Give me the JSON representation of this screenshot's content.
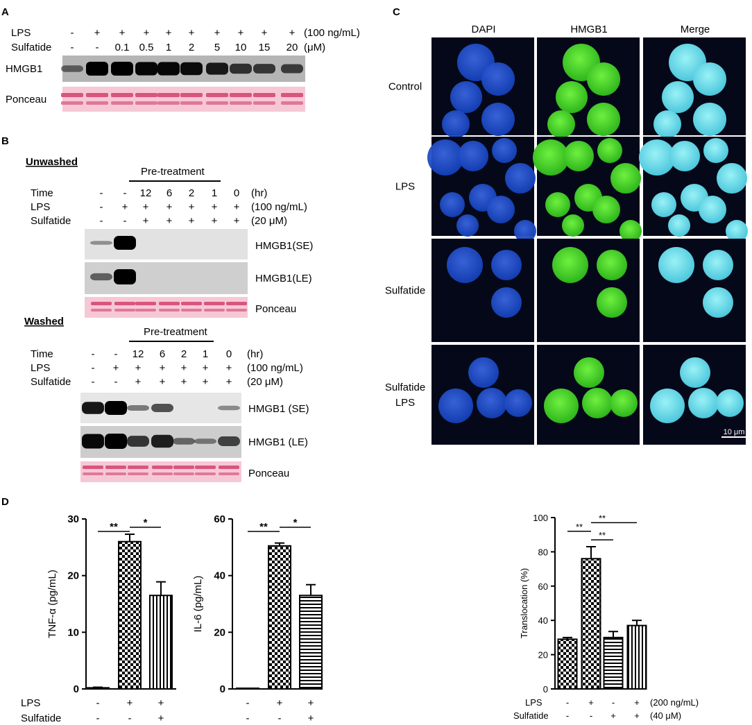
{
  "figure": {
    "panel_labels": {
      "a": "A",
      "b": "B",
      "c": "C",
      "d": "D"
    },
    "panel_a": {
      "row_labels": [
        "LPS",
        "Sulfatide"
      ],
      "lps": [
        "-",
        "+",
        "+",
        "+",
        "+",
        "+",
        "+",
        "+",
        "+",
        "+"
      ],
      "sulfatide": [
        "-",
        "-",
        "0.1",
        "0.5",
        "1",
        "2",
        "5",
        "10",
        "15",
        "20"
      ],
      "lps_unit": "(100 ng/mL)",
      "sulfatide_unit": "(μM)",
      "blot_labels": [
        "HMGB1",
        "Ponceau"
      ],
      "hmgb1_intensity": [
        0.25,
        1.0,
        1.0,
        0.95,
        0.95,
        0.9,
        0.8,
        0.6,
        0.55,
        0.5
      ]
    },
    "panel_b": {
      "unwashed": {
        "title": "Unwashed",
        "pretreatment": "Pre-treatment",
        "row_labels": [
          "Time",
          "LPS",
          "Sulfatide"
        ],
        "time": [
          "-",
          "-",
          "12",
          "6",
          "2",
          "1",
          "0"
        ],
        "lps": [
          "-",
          "+",
          "+",
          "+",
          "+",
          "+",
          "+"
        ],
        "sulfatide": [
          "-",
          "-",
          "+",
          "+",
          "+",
          "+",
          "+"
        ],
        "units": [
          "(hr)",
          "(100 ng/mL)",
          "(20 μM)"
        ],
        "blot_labels": [
          "HMGB1(SE)",
          "HMGB1(LE)",
          "Ponceau"
        ],
        "se_intensity": [
          0.1,
          1.0,
          0,
          0,
          0,
          0,
          0
        ],
        "le_intensity": [
          0.35,
          1.0,
          0,
          0,
          0,
          0,
          0
        ]
      },
      "washed": {
        "title": "Washed",
        "pretreatment": "Pre-treatment",
        "row_labels": [
          "Time",
          "LPS",
          "Sulfatide"
        ],
        "time": [
          "-",
          "-",
          "12",
          "6",
          "2",
          "1",
          "0"
        ],
        "lps": [
          "-",
          "+",
          "+",
          "+",
          "+",
          "+",
          "+"
        ],
        "sulfatide": [
          "-",
          "-",
          "+",
          "+",
          "+",
          "+",
          "+"
        ],
        "units": [
          "(hr)",
          "(100 ng/mL)",
          "(20 μM)"
        ],
        "blot_labels": [
          "HMGB1 (SE)",
          "HMGB1 (LE)",
          "Ponceau"
        ],
        "se_intensity": [
          0.85,
          1.0,
          0.25,
          0.5,
          0,
          0,
          0.15
        ],
        "le_intensity": [
          0.95,
          1.0,
          0.65,
          0.8,
          0.3,
          0.2,
          0.55
        ]
      }
    },
    "panel_c": {
      "columns": [
        "DAPI",
        "HMGB1",
        "Merge"
      ],
      "rows": [
        "Control",
        "LPS",
        "Sulfatide",
        "Sulfatide\nLPS"
      ],
      "row_label_lines": [
        [
          "Control"
        ],
        [
          "LPS"
        ],
        [
          "Sulfatide"
        ],
        [
          "Sulfatide",
          "LPS"
        ]
      ],
      "scale_bar": "10 μm",
      "colors": {
        "dapi": "#1f4fc7",
        "hmgb1": "#48d62a",
        "merge": "#6fe0e8",
        "background": "#050818"
      }
    },
    "panel_d": {
      "row_labels": [
        "LPS",
        "Sulfatide"
      ],
      "translocation_units": [
        "(200 ng/mL)",
        "(40 μM)"
      ]
    }
  },
  "chart_data": [
    {
      "type": "bar",
      "ylabel": "TNF-α (pg/mL)",
      "ylim": [
        0,
        30
      ],
      "yticks": [
        0,
        10,
        20,
        30
      ],
      "categories": [
        "",
        "",
        ""
      ],
      "values": [
        0.2,
        26.0,
        16.5
      ],
      "errors": [
        0.1,
        1.3,
        2.4
      ],
      "patterns": [
        "none",
        "checker",
        "vertical"
      ],
      "lps": [
        "-",
        "+",
        "+"
      ],
      "sulfatide": [
        "-",
        "-",
        "+"
      ],
      "significance": [
        {
          "from": 0,
          "to": 1,
          "label": "**"
        },
        {
          "from": 1,
          "to": 2,
          "label": "*"
        }
      ]
    },
    {
      "type": "bar",
      "ylabel": "IL-6 (pg/mL)",
      "ylim": [
        0,
        60
      ],
      "yticks": [
        0,
        20,
        40,
        60
      ],
      "categories": [
        "",
        "",
        ""
      ],
      "values": [
        0,
        50.5,
        33.0
      ],
      "errors": [
        0,
        1.0,
        3.8
      ],
      "patterns": [
        "none",
        "checker",
        "horizontal"
      ],
      "lps": [
        "-",
        "+",
        "+"
      ],
      "sulfatide": [
        "-",
        "-",
        "+"
      ],
      "significance": [
        {
          "from": 0,
          "to": 1,
          "label": "**"
        },
        {
          "from": 1,
          "to": 2,
          "label": "*"
        }
      ]
    },
    {
      "type": "bar",
      "ylabel": "Translocation (%)",
      "ylim": [
        0,
        100
      ],
      "yticks": [
        0,
        20,
        40,
        60,
        80,
        100
      ],
      "categories": [
        "",
        "",
        "",
        ""
      ],
      "values": [
        29,
        76,
        30,
        37
      ],
      "errors": [
        1,
        7,
        3.5,
        3
      ],
      "patterns": [
        "checker",
        "checker",
        "horizontal",
        "vertical"
      ],
      "lps": [
        "-",
        "+",
        "-",
        "+"
      ],
      "sulfatide": [
        "-",
        "-",
        "+",
        "+"
      ],
      "significance": [
        {
          "from": 0,
          "to": 1,
          "label": "**"
        },
        {
          "from": 1,
          "to": 2,
          "label": "**"
        },
        {
          "from": 1,
          "to": 3,
          "label": "**"
        }
      ]
    }
  ]
}
